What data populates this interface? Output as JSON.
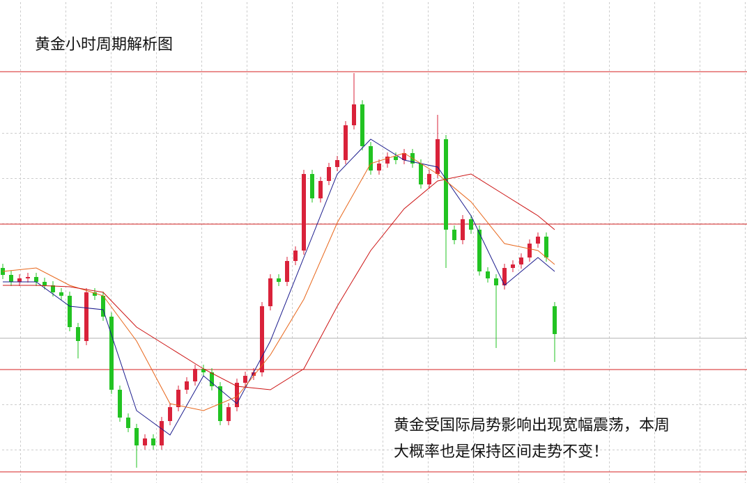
{
  "chart_data": {
    "type": "candlestick",
    "title": "黄金小时周期解析图",
    "annotation": [
      "黄金受国际局势影响出现宽幅震荡，本周",
      "大概率也是保持区间走势不变！"
    ],
    "ylim": [
      0,
      694
    ],
    "up_color": "#d9223a",
    "down_color": "#22c322",
    "open": [
      309,
      299,
      289,
      294,
      296,
      289,
      284,
      274,
      269,
      224,
      204,
      274,
      269,
      239,
      134,
      94,
      79,
      54,
      64,
      54,
      89,
      109,
      134,
      146,
      164,
      159,
      139,
      89,
      109,
      144,
      154,
      159,
      254,
      294,
      289,
      319,
      334,
      444,
      409,
      434,
      454,
      464,
      514,
      544,
      484,
      449,
      459,
      469,
      464,
      474,
      459,
      429,
      444,
      494,
      364,
      349,
      379,
      364,
      304,
      294,
      284,
      309,
      314,
      324,
      344,
      354,
      254
    ],
    "high": [
      315,
      305,
      300,
      302,
      302,
      295,
      290,
      280,
      275,
      230,
      280,
      280,
      275,
      245,
      140,
      100,
      85,
      70,
      70,
      95,
      115,
      140,
      152,
      170,
      170,
      165,
      145,
      115,
      150,
      160,
      165,
      260,
      300,
      300,
      325,
      340,
      450,
      450,
      440,
      460,
      470,
      520,
      589,
      550,
      490,
      465,
      475,
      475,
      480,
      480,
      465,
      450,
      529,
      500,
      370,
      385,
      385,
      370,
      310,
      300,
      315,
      320,
      330,
      350,
      360,
      360,
      260
    ],
    "low": [
      293,
      283,
      283,
      288,
      283,
      278,
      268,
      263,
      218,
      179,
      198,
      263,
      233,
      128,
      88,
      73,
      22,
      48,
      48,
      48,
      83,
      103,
      128,
      140,
      153,
      133,
      83,
      83,
      103,
      138,
      148,
      153,
      248,
      283,
      283,
      313,
      328,
      403,
      403,
      428,
      448,
      458,
      508,
      478,
      443,
      443,
      453,
      458,
      458,
      453,
      423,
      423,
      438,
      309,
      343,
      343,
      358,
      298,
      288,
      194,
      278,
      303,
      308,
      318,
      338,
      318,
      174
    ],
    "close": [
      299,
      289,
      294,
      296,
      289,
      284,
      274,
      269,
      224,
      204,
      274,
      269,
      239,
      134,
      94,
      79,
      54,
      64,
      54,
      89,
      109,
      134,
      146,
      164,
      159,
      139,
      89,
      109,
      144,
      154,
      159,
      254,
      294,
      289,
      319,
      334,
      444,
      409,
      434,
      454,
      464,
      514,
      544,
      484,
      449,
      459,
      469,
      464,
      474,
      459,
      429,
      444,
      494,
      364,
      349,
      379,
      364,
      304,
      294,
      284,
      309,
      314,
      324,
      344,
      354,
      324,
      214
    ],
    "moving_averages": [
      {
        "color": "#1a1a8c",
        "x": [
          0,
          4,
          8,
          12,
          16,
          20,
          24,
          28,
          32,
          36,
          40,
          44,
          48,
          52,
          56,
          60,
          64,
          66
        ],
        "values": [
          289,
          289,
          254,
          249,
          104,
          69,
          154,
          114,
          204,
          324,
          444,
          494,
          464,
          454,
          384,
          284,
          324,
          304
        ]
      },
      {
        "color": "#e8661a",
        "x": [
          0,
          4,
          8,
          12,
          16,
          20,
          24,
          28,
          32,
          36,
          40,
          44,
          48,
          52,
          56,
          60,
          64,
          66
        ],
        "values": [
          304,
          309,
          284,
          269,
          204,
          114,
          104,
          124,
          184,
          264,
          374,
          459,
          474,
          444,
          404,
          344,
          334,
          314
        ]
      },
      {
        "color": "#cc1111",
        "x": [
          0,
          4,
          8,
          12,
          16,
          20,
          24,
          28,
          32,
          36,
          40,
          44,
          48,
          52,
          56,
          60,
          64,
          66
        ],
        "values": [
          284,
          284,
          282,
          274,
          224,
          194,
          164,
          139,
          134,
          164,
          254,
          334,
          394,
          434,
          444,
          414,
          384,
          364
        ]
      }
    ],
    "levels": [
      591,
      372,
      163,
      16
    ],
    "level_color": "#d42020",
    "price_line": 208,
    "price_line_color": "#b0b0b0",
    "grid": true
  }
}
